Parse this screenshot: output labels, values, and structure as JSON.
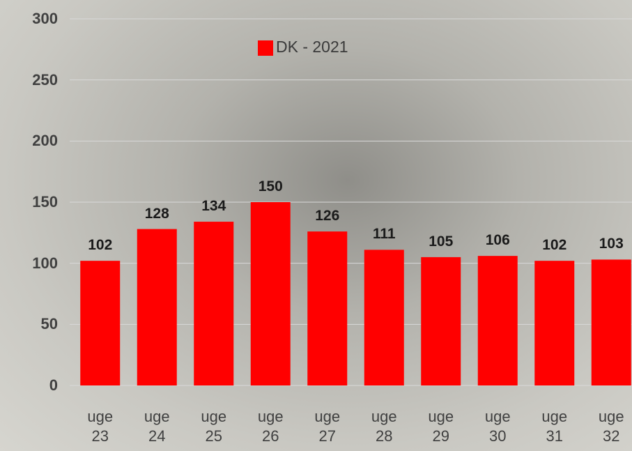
{
  "chart_data": {
    "type": "bar",
    "categories": [
      "uge 23",
      "uge 24",
      "uge 25",
      "uge 26",
      "uge 27",
      "uge 28",
      "uge 29",
      "uge 30",
      "uge 31",
      "uge 32"
    ],
    "series": [
      {
        "name": "DK - 2021",
        "color": "#ff0000",
        "values": [
          102,
          128,
          134,
          150,
          126,
          111,
          105,
          106,
          102,
          103
        ]
      }
    ],
    "ylim": [
      0,
      300
    ],
    "yticks": [
      0,
      50,
      100,
      150,
      200,
      250,
      300
    ],
    "grid": true
  }
}
